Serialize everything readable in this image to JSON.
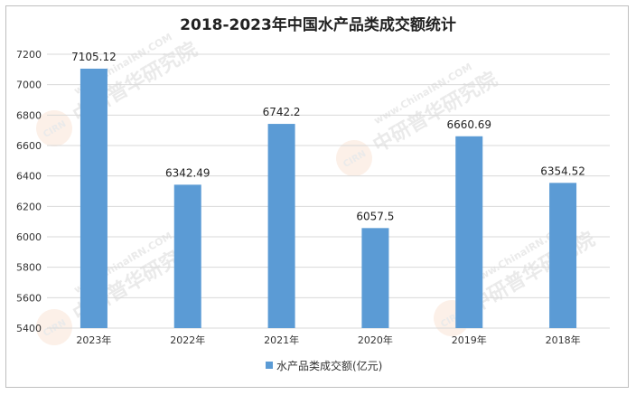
{
  "chart_data": {
    "type": "bar",
    "title": "2018-2023年中国水产品类成交额统计",
    "categories": [
      "2023年",
      "2022年",
      "2021年",
      "2020年",
      "2019年",
      "2018年"
    ],
    "series": [
      {
        "name": "水产品类成交额(亿元)",
        "values": [
          7105.12,
          6342.49,
          6742.2,
          6057.5,
          6660.69,
          6354.52
        ],
        "color": "#5b9bd5"
      }
    ],
    "data_labels": [
      "7105.12",
      "6342.49",
      "6742.2",
      "6057.5",
      "6660.69",
      "6354.52"
    ],
    "ylim": [
      5400,
      7200
    ],
    "yticks": [
      5400,
      5600,
      5800,
      6000,
      6200,
      6400,
      6600,
      6800,
      7000,
      7200
    ],
    "xlabel": "",
    "ylabel": "",
    "grid": true,
    "legend_position": "bottom"
  },
  "watermark": {
    "brand": "中研普华研究院",
    "url": "www.ChinaIRN.COM",
    "logo": "CIRN"
  }
}
